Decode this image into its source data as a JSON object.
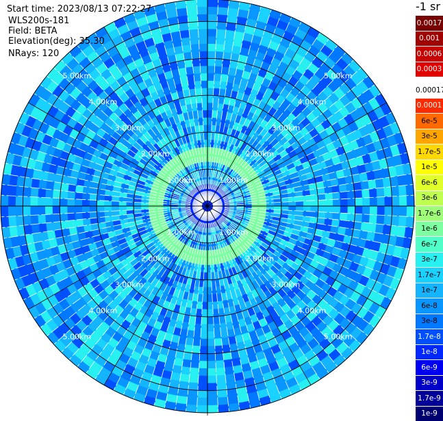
{
  "info": {
    "start_time": "Start time: 2023/08/13 07:22:27",
    "site": "WLS200s-181",
    "field": "Field: BETA",
    "elevation": "Elevation(deg): 35.30",
    "nrays": "NRays: 120"
  },
  "colorbar": {
    "unit": "-1 sr",
    "top_group": [
      {
        "label": "0.0017",
        "color": "#7a0000",
        "text_color": "#ffffff"
      },
      {
        "label": "0.001",
        "color": "#a00000",
        "text_color": "#ffffff"
      },
      {
        "label": "0.0006",
        "color": "#c40000",
        "text_color": "#ffffff"
      },
      {
        "label": "0.0003",
        "color": "#e00000",
        "text_color": "#ffffff"
      }
    ],
    "main_group": [
      {
        "label": "0.00017",
        "color": "#ffffff",
        "text_color": "#000000"
      },
      {
        "label": "0.0001",
        "color": "#ff2a00",
        "text_color": "#ffffff"
      },
      {
        "label": "6e-5",
        "color": "#ff6a00",
        "text_color": "#000000"
      },
      {
        "label": "3e-5",
        "color": "#ffa500",
        "text_color": "#000000"
      },
      {
        "label": "1.7e-5",
        "color": "#ffd800",
        "text_color": "#000000"
      },
      {
        "label": "1e-5",
        "color": "#ffff00",
        "text_color": "#000000"
      },
      {
        "label": "6e-6",
        "color": "#e0ff2a",
        "text_color": "#000000"
      },
      {
        "label": "3e-6",
        "color": "#c0ff50",
        "text_color": "#000000"
      },
      {
        "label": "1.7e-6",
        "color": "#a0ff78",
        "text_color": "#000000"
      },
      {
        "label": "1e-6",
        "color": "#7cffa0",
        "text_color": "#000000"
      },
      {
        "label": "6e-7",
        "color": "#50ffc8",
        "text_color": "#000000"
      },
      {
        "label": "3e-7",
        "color": "#28f0f0",
        "text_color": "#000000"
      },
      {
        "label": "1.7e-7",
        "color": "#1ad2ff",
        "text_color": "#000000"
      },
      {
        "label": "1e-7",
        "color": "#14b4ff",
        "text_color": "#000000"
      },
      {
        "label": "6e-8",
        "color": "#0a96ff",
        "text_color": "#000000"
      },
      {
        "label": "3e-8",
        "color": "#0078ff",
        "text_color": "#000000"
      },
      {
        "label": "1.7e-8",
        "color": "#0050ff",
        "text_color": "#ffffff"
      },
      {
        "label": "1e-8",
        "color": "#0028ff",
        "text_color": "#ffffff"
      },
      {
        "label": "6e-9",
        "color": "#0000f0",
        "text_color": "#ffffff"
      },
      {
        "label": "3e-9",
        "color": "#0000c8",
        "text_color": "#ffffff"
      },
      {
        "label": "1.7e-9",
        "color": "#00009a",
        "text_color": "#ffffff"
      },
      {
        "label": "1e-9",
        "color": "#000070",
        "text_color": "#ffffff"
      }
    ]
  },
  "chart_data": {
    "type": "polar-ppi",
    "field": "BETA",
    "rings_km": [
      1.0,
      2.0,
      3.0,
      4.0,
      5.0
    ],
    "range_max_km": 5.6,
    "ring_labels": [
      "1.00km",
      "2.00km",
      "3.00km",
      "4.00km",
      "5.00km"
    ],
    "nrays": 120,
    "spokes_deg": [
      0,
      30,
      60,
      90,
      120,
      150,
      180,
      210,
      240,
      270,
      300,
      330
    ],
    "field_levels": [
      {
        "range_km": [
          0.0,
          0.6
        ],
        "level": "1e-8"
      },
      {
        "range_km": [
          0.6,
          1.2
        ],
        "level": "1e-7"
      },
      {
        "range_km": [
          1.2,
          1.6
        ],
        "level": "1e-6"
      },
      {
        "range_km": [
          1.6,
          5.6
        ],
        "level": "1e-7"
      }
    ]
  }
}
